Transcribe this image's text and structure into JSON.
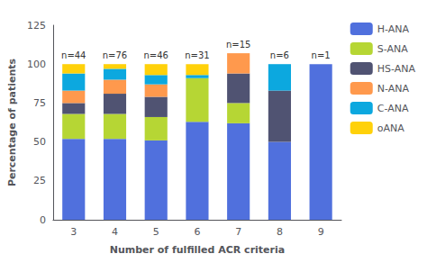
{
  "chart_data": {
    "type": "bar",
    "stacked": true,
    "xlabel": "Number of fulfilled ACR criteria",
    "ylabel": "Percentage of patients",
    "categories": [
      "3",
      "4",
      "5",
      "6",
      "7",
      "8",
      "9"
    ],
    "series": [
      {
        "name": "H-ANA",
        "values": [
          52,
          52,
          51,
          63,
          62,
          50,
          100
        ]
      },
      {
        "name": "S-ANA",
        "values": [
          16,
          16,
          15,
          28,
          13,
          0,
          0
        ]
      },
      {
        "name": "HS-ANA",
        "values": [
          7,
          13,
          13,
          0,
          19,
          33,
          0
        ]
      },
      {
        "name": "N-ANA",
        "values": [
          8,
          9,
          8,
          0,
          13,
          0,
          0
        ]
      },
      {
        "name": "C-ANA",
        "values": [
          11,
          7,
          6,
          2,
          0,
          17,
          0
        ]
      },
      {
        "name": "oANA",
        "values": [
          6,
          3,
          7,
          7,
          0,
          0,
          0
        ]
      }
    ],
    "annotations": [
      {
        "x": "3",
        "text": "n=44"
      },
      {
        "x": "4",
        "text": "n=76"
      },
      {
        "x": "5",
        "text": "n=46"
      },
      {
        "x": "6",
        "text": "n=31"
      },
      {
        "x": "7",
        "text": "n=15"
      },
      {
        "x": "8",
        "text": "n=6"
      },
      {
        "x": "9",
        "text": "n=1"
      }
    ],
    "ylim": [
      0,
      125
    ],
    "yticks": [
      0,
      25,
      50,
      75,
      100,
      125
    ],
    "grid": false,
    "legend": "right"
  }
}
